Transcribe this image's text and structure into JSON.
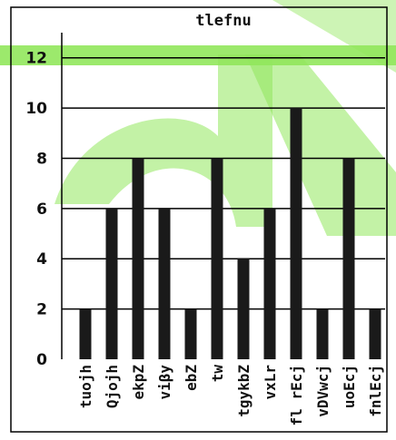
{
  "chart_data": {
    "type": "bar",
    "title": "tlefnu",
    "xlabel": "",
    "ylabel": "",
    "categories": [
      "tuojh",
      "Qjojh",
      "ekpZ",
      "viβy",
      "ebZ",
      "tw",
      "tgykbZ",
      "vxLr",
      "fl rEcj",
      "vDVwcj",
      "uoEcj",
      "fnlEcj"
    ],
    "values": [
      2,
      6,
      8,
      6,
      2,
      8,
      4,
      6,
      10,
      2,
      8,
      2
    ],
    "ylim": [
      0,
      13
    ],
    "yticks": [
      0,
      2,
      4,
      6,
      8,
      10,
      12
    ],
    "grid": true,
    "colors": {
      "bar": "#1a1a1a",
      "grid": "#000000",
      "background": "#ffffff",
      "watermark": "#7ee23f"
    }
  }
}
